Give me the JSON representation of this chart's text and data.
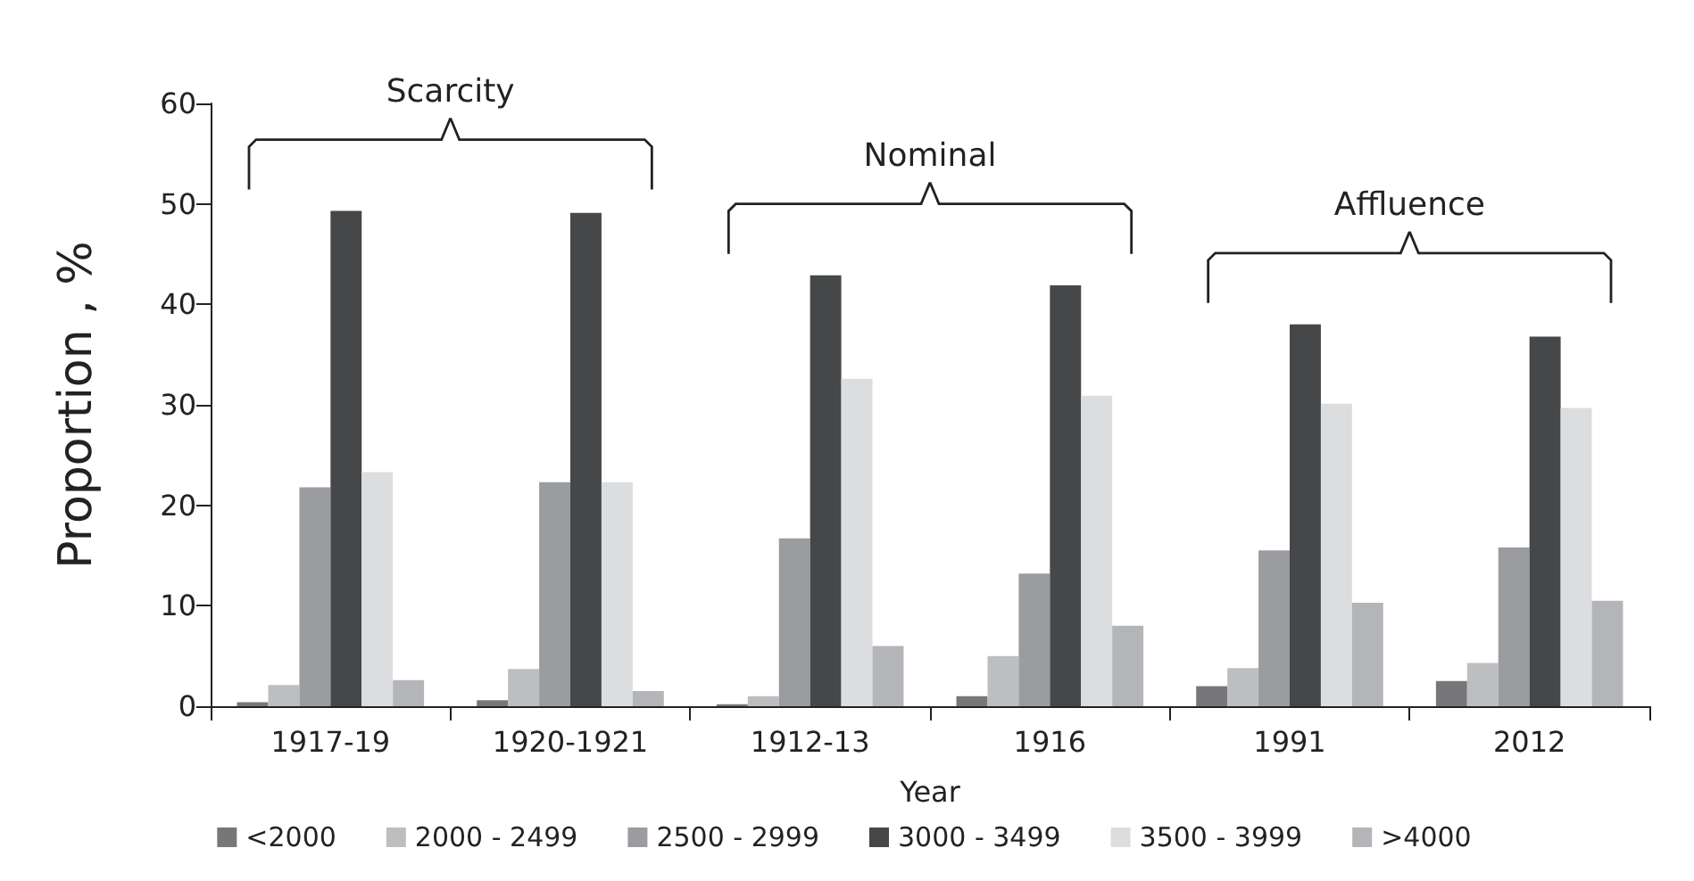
{
  "chart_data": {
    "type": "bar",
    "xlabel": "Year",
    "ylabel": "Proportion , %",
    "categories": [
      "1917-19",
      "1920-1921",
      "1912-13",
      "1916",
      "1991",
      "2012"
    ],
    "series": [
      {
        "name": "<2000",
        "color": "#77777a",
        "values": [
          0.4,
          0.6,
          0.2,
          1.0,
          2.0,
          2.5
        ]
      },
      {
        "name": "2000 - 2499",
        "color": "#bdbec0",
        "values": [
          2.1,
          3.7,
          1.0,
          5.0,
          3.8,
          4.3
        ]
      },
      {
        "name": "2500 - 2999",
        "color": "#9b9c9f",
        "values": [
          21.8,
          22.3,
          16.7,
          13.2,
          15.5,
          15.8
        ]
      },
      {
        "name": "3000 - 3499",
        "color": "#464749",
        "values": [
          49.3,
          49.1,
          42.9,
          41.9,
          38.0,
          36.8
        ]
      },
      {
        "name": "3500 - 3999",
        "color": "#dcdddf",
        "values": [
          23.3,
          22.3,
          32.6,
          30.9,
          30.1,
          29.7
        ]
      },
      {
        "name": ">4000",
        "color": "#b4b5b8",
        "values": [
          2.6,
          1.5,
          6.0,
          8.0,
          10.3,
          10.5
        ]
      }
    ],
    "ylim": [
      0,
      60
    ],
    "yticks": [
      0,
      10,
      20,
      30,
      40,
      50,
      60
    ],
    "grid": false,
    "legend": "bottom",
    "annotations": [
      "Scarcity",
      "Nominal",
      "Affluence"
    ]
  }
}
